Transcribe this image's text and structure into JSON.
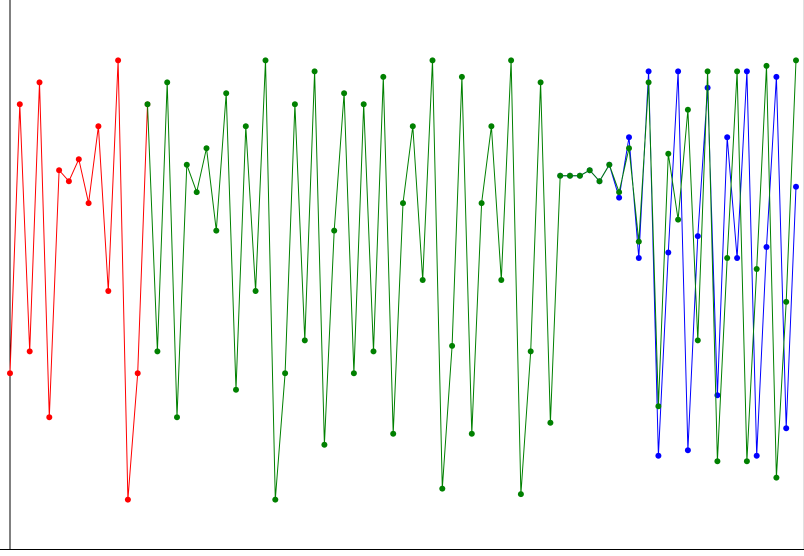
{
  "chart_data": {
    "type": "line",
    "title": "",
    "xlabel": "",
    "ylabel": "",
    "xlim": [
      0,
      80
    ],
    "ylim": [
      0,
      100
    ],
    "grid": false,
    "legend": "none",
    "series": [
      {
        "color": "#ff0000",
        "x_start": 0,
        "values": [
          32,
          81,
          36,
          85,
          24,
          69,
          67,
          71,
          63,
          77,
          47,
          89,
          9,
          32,
          81
        ]
      },
      {
        "color": "#0000ff",
        "x_start": 56,
        "values": [
          68,
          68,
          68,
          69,
          67,
          70,
          64,
          75,
          53,
          87,
          17,
          54,
          87,
          18,
          57,
          84,
          28,
          75,
          53,
          87,
          17,
          55,
          86,
          22,
          66
        ]
      },
      {
        "color": "#008000",
        "x_start": 14,
        "values": [
          81,
          36,
          85,
          24,
          70,
          65,
          73,
          58,
          83,
          29,
          77,
          47,
          89,
          9,
          32,
          81,
          38,
          87,
          19,
          58,
          83,
          32,
          81,
          36,
          86,
          21,
          63,
          77,
          49,
          89,
          11,
          37,
          86,
          21,
          63,
          77,
          49,
          89,
          10,
          36,
          85,
          23,
          68,
          68,
          68,
          69,
          67,
          70,
          65,
          73,
          56,
          85,
          26,
          72,
          60,
          80,
          38,
          87,
          16,
          53,
          87,
          16,
          51,
          88,
          13,
          45,
          89
        ]
      }
    ]
  }
}
